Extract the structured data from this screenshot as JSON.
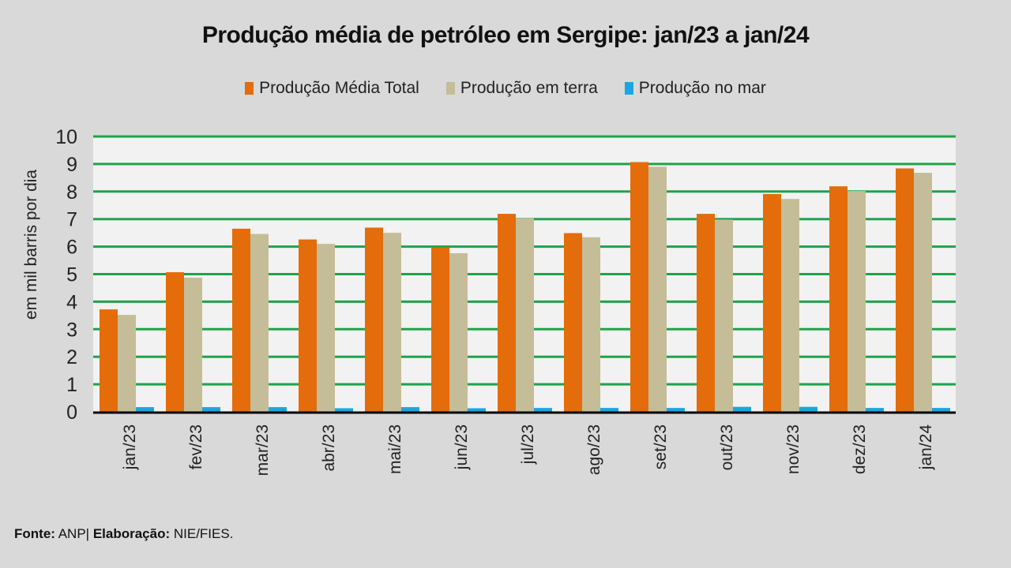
{
  "chart_data": {
    "type": "bar",
    "title": "Produção média de petróleo em Sergipe: jan/23 a jan/24",
    "xlabel": "",
    "ylabel": "em mil barris por dia",
    "ylim": [
      0,
      10
    ],
    "yticks": [
      "0",
      "1",
      "2",
      "3",
      "4",
      "5",
      "6",
      "7",
      "8",
      "9",
      "10"
    ],
    "grid": true,
    "legend_position": "top",
    "categories": [
      "jan/23",
      "fev/23",
      "mar/23",
      "abr/23",
      "mai/23",
      "jun/23",
      "jul/23",
      "ago/23",
      "set/23",
      "out/23",
      "nov/23",
      "dez/23",
      "jan/24"
    ],
    "series": [
      {
        "name": "Produção Média Total",
        "color": "#e46c0a",
        "values": [
          3.72,
          5.07,
          6.65,
          6.26,
          6.69,
          5.97,
          7.19,
          6.49,
          9.07,
          7.19,
          7.91,
          8.19,
          8.84
        ]
      },
      {
        "name": "Produção em terra",
        "color": "#c4bd97",
        "values": [
          3.52,
          4.87,
          6.46,
          6.1,
          6.5,
          5.76,
          7.03,
          6.34,
          8.9,
          6.98,
          7.73,
          8.02,
          8.68
        ]
      },
      {
        "name": "Produção no mar",
        "color": "#1aa7e0",
        "values": [
          0.17,
          0.17,
          0.17,
          0.13,
          0.17,
          0.13,
          0.14,
          0.14,
          0.14,
          0.18,
          0.18,
          0.14,
          0.14
        ]
      }
    ]
  },
  "source": {
    "fonte_label": "Fonte:",
    "fonte_value": " ANP| ",
    "elaboracao_label": "Elaboração:",
    "elaboracao_value": " NIE/FIES."
  },
  "colors": {
    "gridline": "#1ea34a",
    "plot_bg": "#f2f2f2",
    "page_bg": "#d9d9d9"
  }
}
